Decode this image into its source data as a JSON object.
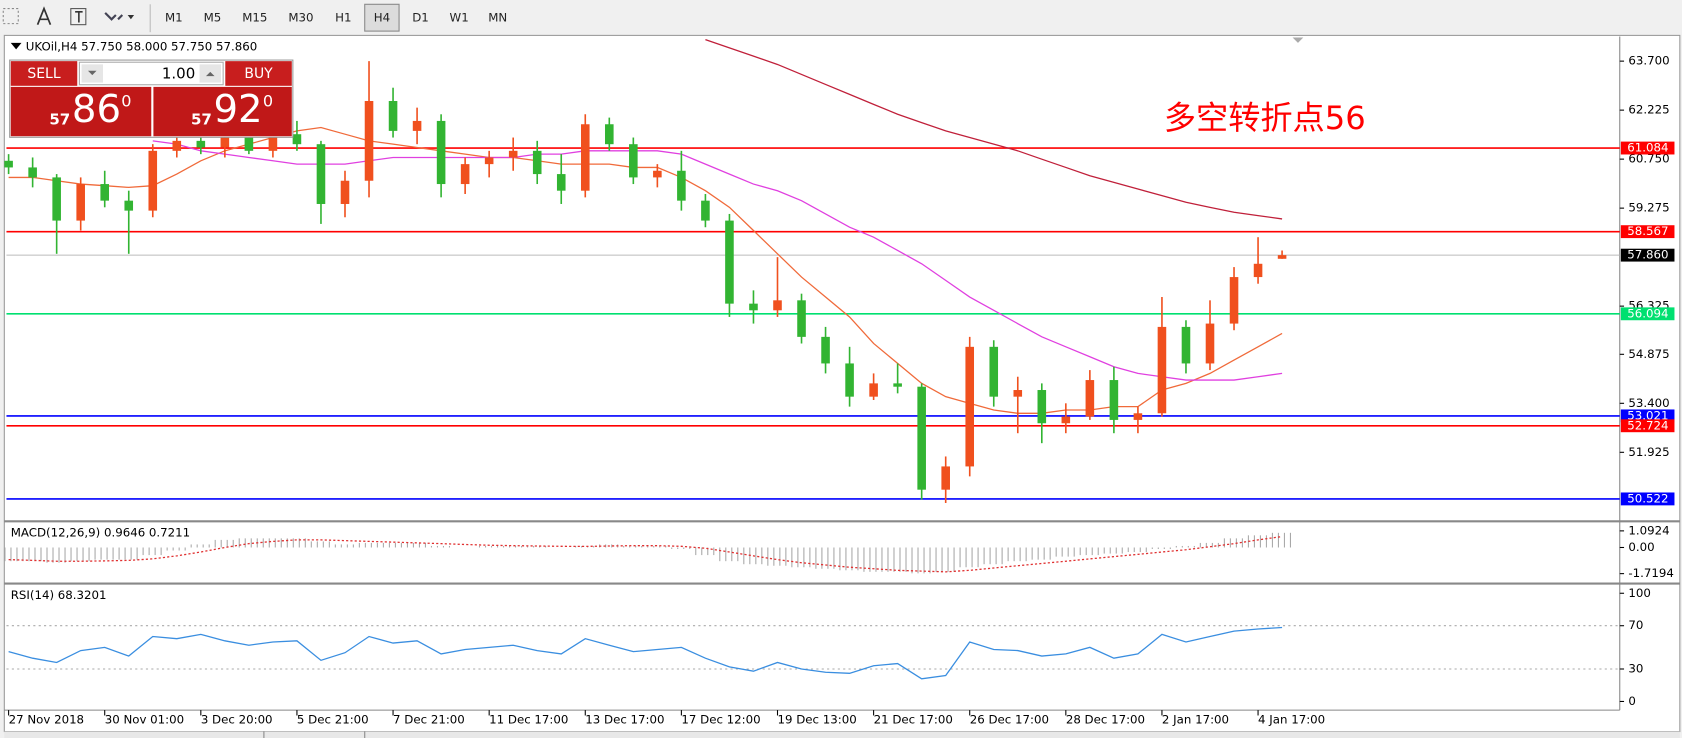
{
  "toolbar": {
    "timeframes": [
      "M1",
      "M5",
      "M15",
      "M30",
      "H1",
      "H4",
      "D1",
      "W1",
      "MN"
    ],
    "active": "H4"
  },
  "trade_panel": {
    "sell_label": "SELL",
    "buy_label": "BUY",
    "lots": "1.00",
    "sell_price": {
      "lead": "57",
      "main": "86",
      "sup": "0"
    },
    "buy_price": {
      "lead": "57",
      "main": "92",
      "sup": "0"
    }
  },
  "chart_data": {
    "type": "candlestick",
    "header": "UKOil,H4  57.750 58.000 57.750 57.860",
    "annotation": "多空转折点56",
    "categories": [
      "27 Nov 2018",
      null,
      null,
      null,
      "30 Nov 01:00",
      null,
      null,
      null,
      "3 Dec 20:00",
      null,
      null,
      null,
      "5 Dec 21:00",
      null,
      null,
      null,
      "7 Dec 21:00",
      null,
      null,
      null,
      "11 Dec 17:00",
      null,
      null,
      null,
      "13 Dec 17:00",
      null,
      null,
      null,
      "17 Dec 12:00",
      null,
      null,
      null,
      "19 Dec 13:00",
      null,
      null,
      null,
      "21 Dec 17:00",
      null,
      null,
      null,
      "26 Dec 17:00",
      null,
      null,
      null,
      "28 Dec 17:00",
      null,
      null,
      null,
      "2 Jan 17:00",
      null,
      null,
      null,
      "4 Jan 17:00",
      null
    ],
    "open": [
      60.7,
      60.5,
      60.2,
      58.9,
      60.0,
      59.5,
      59.2,
      61.0,
      61.3,
      61.1,
      61.4,
      61.0,
      61.5,
      61.2,
      59.4,
      60.1,
      62.5,
      61.6,
      61.9,
      60.0,
      60.6,
      60.8,
      61.0,
      60.3,
      59.8,
      61.8,
      61.2,
      60.2,
      60.4,
      59.5,
      58.9,
      56.4,
      56.2,
      56.5,
      55.4,
      54.6,
      53.6,
      54.0,
      53.9,
      50.8,
      51.5,
      55.1,
      53.6,
      53.8,
      52.8,
      53.0,
      54.1,
      52.9,
      53.1,
      55.7,
      54.6,
      55.8,
      57.2,
      57.75
    ],
    "high": [
      60.9,
      60.8,
      60.3,
      60.2,
      60.4,
      59.8,
      61.2,
      61.5,
      61.8,
      61.6,
      61.8,
      61.7,
      61.9,
      61.3,
      60.4,
      63.7,
      62.9,
      62.3,
      62.1,
      60.8,
      61.0,
      61.4,
      61.3,
      60.9,
      62.1,
      62.0,
      61.4,
      60.6,
      61.0,
      59.7,
      59.1,
      56.8,
      57.8,
      56.7,
      55.7,
      55.1,
      54.3,
      54.6,
      54.0,
      51.8,
      55.4,
      55.3,
      54.2,
      54.0,
      53.4,
      54.4,
      54.5,
      53.3,
      56.6,
      55.9,
      56.5,
      57.5,
      58.4,
      58.0
    ],
    "low": [
      60.3,
      59.9,
      57.9,
      58.6,
      59.3,
      57.9,
      59.0,
      60.8,
      60.9,
      60.8,
      60.9,
      60.8,
      61.0,
      58.8,
      59.0,
      59.6,
      61.4,
      61.2,
      59.6,
      59.7,
      60.2,
      60.4,
      60.0,
      59.4,
      59.6,
      61.0,
      60.0,
      59.9,
      59.2,
      58.7,
      56.0,
      55.8,
      56.0,
      55.2,
      54.3,
      53.3,
      53.5,
      53.7,
      50.5,
      50.4,
      51.2,
      53.3,
      52.5,
      52.2,
      52.5,
      52.9,
      52.5,
      52.5,
      53.0,
      54.3,
      54.4,
      55.6,
      57.0,
      57.75
    ],
    "close": [
      60.5,
      60.2,
      58.9,
      60.0,
      59.5,
      59.2,
      61.0,
      61.3,
      61.1,
      61.4,
      61.0,
      61.5,
      61.2,
      59.4,
      60.1,
      62.5,
      61.6,
      61.9,
      60.0,
      60.6,
      60.8,
      61.0,
      60.3,
      59.8,
      61.8,
      61.2,
      60.2,
      60.4,
      59.5,
      58.9,
      56.4,
      56.2,
      56.5,
      55.4,
      54.6,
      53.6,
      54.0,
      53.9,
      50.8,
      51.5,
      55.1,
      53.6,
      53.8,
      52.8,
      53.0,
      54.1,
      52.9,
      53.1,
      55.7,
      54.6,
      55.8,
      57.2,
      57.6,
      57.86
    ],
    "up_color": "#f0501e",
    "down_color": "#32b432",
    "moving_averages": [
      {
        "color": "#f06a3a",
        "values": [
          60.2,
          60.2,
          60.1,
          60.0,
          59.95,
          59.9,
          59.95,
          60.3,
          60.7,
          61.0,
          61.2,
          61.4,
          61.6,
          61.7,
          61.5,
          61.3,
          61.2,
          61.1,
          61.0,
          60.9,
          60.8,
          60.8,
          60.7,
          60.6,
          60.6,
          60.6,
          60.5,
          60.5,
          60.2,
          59.8,
          59.3,
          58.6,
          57.9,
          57.2,
          56.6,
          56.0,
          55.2,
          54.6,
          54.0,
          53.6,
          53.4,
          53.2,
          53.1,
          53.1,
          53.2,
          53.2,
          53.3,
          53.3,
          53.8,
          54.0,
          54.3,
          54.7,
          55.1,
          55.5
        ]
      },
      {
        "color": "#e040e0",
        "values": [
          null,
          null,
          null,
          null,
          null,
          null,
          61.3,
          61.2,
          61.0,
          60.9,
          60.8,
          60.7,
          60.6,
          60.6,
          60.6,
          60.7,
          60.8,
          60.8,
          60.8,
          60.8,
          60.8,
          60.8,
          60.9,
          60.9,
          61.0,
          61.0,
          61.0,
          61.0,
          60.9,
          60.6,
          60.3,
          60.0,
          59.8,
          59.5,
          59.1,
          58.7,
          58.4,
          58.0,
          57.6,
          57.1,
          56.6,
          56.2,
          55.8,
          55.4,
          55.1,
          54.8,
          54.5,
          54.3,
          54.2,
          54.1,
          54.1,
          54.1,
          54.2,
          54.3
        ]
      },
      {
        "color": "#c0203a",
        "values": [
          null,
          null,
          null,
          null,
          null,
          null,
          null,
          null,
          null,
          null,
          null,
          null,
          null,
          null,
          null,
          null,
          null,
          null,
          null,
          null,
          null,
          null,
          null,
          null,
          null,
          null,
          null,
          null,
          null,
          64.35,
          64.1,
          63.85,
          63.6,
          63.3,
          63.0,
          62.7,
          62.4,
          62.1,
          61.85,
          61.6,
          61.4,
          61.2,
          61.0,
          60.75,
          60.5,
          60.25,
          60.05,
          59.85,
          59.65,
          59.45,
          59.3,
          59.15,
          59.05,
          58.95
        ]
      }
    ],
    "levels": [
      {
        "value": 61.084,
        "label": "61.084",
        "color": "#ff0000"
      },
      {
        "value": 58.567,
        "label": "58.567",
        "color": "#ff0000"
      },
      {
        "value": 57.86,
        "label": "57.860",
        "color": "#000000"
      },
      {
        "value": 56.094,
        "label": "56.094",
        "color": "#00e070"
      },
      {
        "value": 53.021,
        "label": "53.021",
        "color": "#0000ff"
      },
      {
        "value": 52.724,
        "label": "52.724",
        "color": "#ff0000"
      },
      {
        "value": 50.522,
        "label": "50.522",
        "color": "#0000ff"
      }
    ],
    "ylim": [
      49.88,
      64.41
    ],
    "yticks": [
      {
        "value": 63.7,
        "label": "63.700"
      },
      62.225,
      {
        "value": 60.75,
        "label": "60.750"
      },
      59.275,
      56.325,
      54.875,
      {
        "value": 53.4,
        "label": "53.400"
      },
      51.925
    ],
    "macd": {
      "label": "MACD(12,26,9) 0.9646 0.7211",
      "values": [
        -0.9,
        -0.9,
        -1.0,
        -0.9,
        -0.8,
        -0.8,
        -0.5,
        -0.2,
        0.2,
        0.5,
        0.6,
        0.6,
        0.6,
        0.4,
        0.2,
        0.3,
        0.3,
        0.3,
        0.1,
        0.0,
        0.1,
        0.1,
        0.1,
        0.0,
        0.1,
        0.2,
        0.1,
        0.1,
        -0.1,
        -0.5,
        -0.9,
        -1.1,
        -1.2,
        -1.3,
        -1.4,
        -1.5,
        -1.6,
        -1.6,
        -1.7,
        -1.6,
        -1.3,
        -1.1,
        -0.9,
        -0.8,
        -0.6,
        -0.5,
        -0.4,
        -0.3,
        -0.1,
        0.1,
        0.3,
        0.6,
        0.8,
        0.9646
      ],
      "signal": [
        -0.8,
        -0.85,
        -0.9,
        -0.9,
        -0.88,
        -0.85,
        -0.75,
        -0.55,
        -0.3,
        0.0,
        0.25,
        0.4,
        0.5,
        0.5,
        0.45,
        0.4,
        0.35,
        0.3,
        0.25,
        0.2,
        0.15,
        0.12,
        0.1,
        0.08,
        0.07,
        0.1,
        0.12,
        0.12,
        0.08,
        -0.05,
        -0.3,
        -0.55,
        -0.8,
        -1.0,
        -1.15,
        -1.3,
        -1.4,
        -1.5,
        -1.55,
        -1.6,
        -1.5,
        -1.35,
        -1.2,
        -1.05,
        -0.9,
        -0.75,
        -0.6,
        -0.45,
        -0.3,
        -0.15,
        0.05,
        0.25,
        0.5,
        0.7211
      ],
      "bar_color": "#a8a8a8",
      "signal_color": "#e03030",
      "ylim": [
        -2.3,
        1.65
      ],
      "yticks": [
        1.0924,
        {
          "value": 0,
          "label": "0.00"
        },
        -1.7194
      ]
    },
    "rsi": {
      "label": "RSI(14) 68.3201",
      "values": [
        46,
        40,
        36,
        47,
        50,
        42,
        60,
        58,
        62,
        56,
        52,
        55,
        56,
        38,
        45,
        60,
        54,
        56,
        44,
        48,
        50,
        52,
        47,
        44,
        58,
        52,
        46,
        48,
        50,
        40,
        32,
        28,
        36,
        30,
        27,
        26,
        33,
        35,
        21,
        24,
        55,
        48,
        47,
        42,
        44,
        50,
        40,
        44,
        62,
        55,
        60,
        65,
        67,
        68.3201
      ],
      "color": "#3a8ee0",
      "ylim": [
        -8,
        108
      ],
      "yticks": [
        100,
        70,
        30,
        0
      ],
      "levels": [
        70,
        30
      ]
    }
  }
}
